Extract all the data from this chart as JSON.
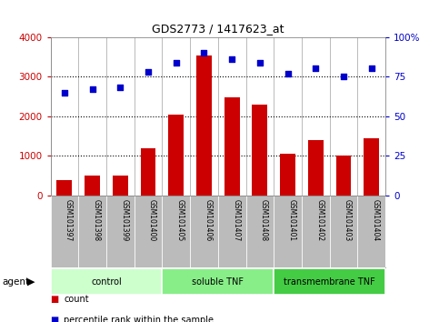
{
  "title": "GDS2773 / 1417623_at",
  "samples": [
    "GSM101397",
    "GSM101398",
    "GSM101399",
    "GSM101400",
    "GSM101405",
    "GSM101406",
    "GSM101407",
    "GSM101408",
    "GSM101401",
    "GSM101402",
    "GSM101403",
    "GSM101404"
  ],
  "counts": [
    380,
    490,
    490,
    1180,
    2040,
    3530,
    2470,
    2290,
    1060,
    1400,
    1010,
    1430
  ],
  "percentiles": [
    65,
    67,
    68,
    78,
    84,
    90,
    86,
    84,
    77,
    80,
    75,
    80
  ],
  "groups": [
    {
      "label": "control",
      "start": 0,
      "end": 3,
      "color": "#ccffcc"
    },
    {
      "label": "soluble TNF",
      "start": 4,
      "end": 7,
      "color": "#88ee88"
    },
    {
      "label": "transmembrane TNF",
      "start": 8,
      "end": 11,
      "color": "#44cc44"
    }
  ],
  "bar_color": "#cc0000",
  "dot_color": "#0000cc",
  "ylim_left": [
    0,
    4000
  ],
  "ylim_right": [
    0,
    100
  ],
  "yticks_left": [
    0,
    1000,
    2000,
    3000,
    4000
  ],
  "yticks_right": [
    0,
    25,
    50,
    75,
    100
  ],
  "grid_levels": [
    1000,
    2000,
    3000
  ],
  "bg_color": "#ffffff",
  "tick_area_color": "#bbbbbb",
  "agent_label": "agent",
  "legend_count": "count",
  "legend_percentile": "percentile rank within the sample"
}
